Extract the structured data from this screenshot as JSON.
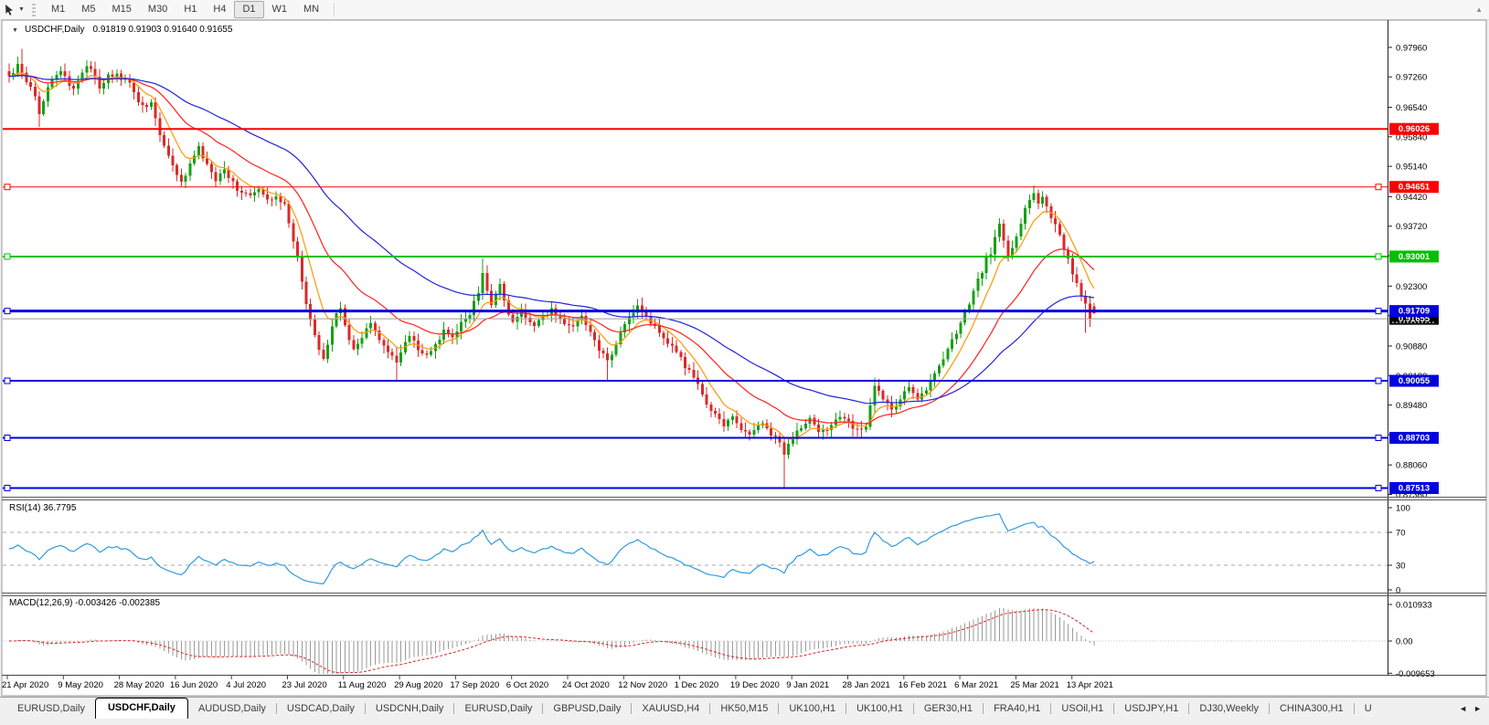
{
  "toolbar": {
    "timeframes": [
      "M1",
      "M5",
      "M15",
      "M30",
      "H1",
      "H4",
      "D1",
      "W1",
      "MN"
    ],
    "active": "D1"
  },
  "chart": {
    "title": "USDCHF,Daily",
    "ohlc_text": "0.91819 0.91903 0.91640 0.91655"
  },
  "indicators": {
    "rsi_label": "RSI(14) 36.7795",
    "macd_label": "MACD(12,26,9) -0.003426 -0.002385"
  },
  "chart_data": {
    "type": "candlestick",
    "symbol": "USDCHF",
    "timeframe": "Daily",
    "title": "USDCHF,Daily  0.91819 0.91903 0.91640 0.91655",
    "bars": 253,
    "last_candle": {
      "open": 0.91819,
      "high": 0.91903,
      "low": 0.9164,
      "close": 0.91655
    },
    "y_range": [
      0.8735,
      0.9852
    ],
    "y_ticks": [
      "0.97960",
      "0.97260",
      "0.96540",
      "0.95840",
      "0.95140",
      "0.94420",
      "0.93720",
      "0.93020",
      "0.92300",
      "0.91600",
      "0.90880",
      "0.90180",
      "0.89480",
      "0.88780",
      "0.88060",
      "0.87360"
    ],
    "x_labels": [
      "21 Apr 2020",
      "9 May 2020",
      "28 May 2020",
      "16 Jun 2020",
      "4 Jul 2020",
      "23 Jul 2020",
      "11 Aug 2020",
      "29 Aug 2020",
      "17 Sep 2020",
      "6 Oct 2020",
      "24 Oct 2020",
      "12 Nov 2020",
      "1 Dec 2020",
      "19 Dec 2020",
      "9 Jan 2021",
      "28 Jan 2021",
      "16 Feb 2021",
      "6 Mar 2021",
      "25 Mar 2021",
      "13 Apr 2021"
    ],
    "h_lines": [
      {
        "price": "0.96026",
        "color": "#fe0000",
        "width": 2,
        "selected": false
      },
      {
        "price": "0.94651",
        "color": "#fe0000",
        "width": 1,
        "selected": true
      },
      {
        "price": "0.93001",
        "color": "#00c000",
        "width": 2,
        "selected": true
      },
      {
        "price": "0.91709",
        "color": "#0000e0",
        "width": 3,
        "selected": true
      },
      {
        "price": "0.90055",
        "color": "#0000e0",
        "width": 2,
        "selected": true
      },
      {
        "price": "0.88703",
        "color": "#0000e0",
        "width": 2,
        "selected": true
      },
      {
        "price": "0.87513",
        "color": "#0000e0",
        "width": 2,
        "selected": true
      }
    ],
    "current_price": {
      "value": "0.91655",
      "badge_color": "#000000"
    },
    "candle_colors": {
      "up": "#16a016",
      "down": "#da2a2a"
    },
    "moving_averages": [
      {
        "period": 8,
        "color": "#ff9900"
      },
      {
        "period": 24,
        "color": "#ff2020"
      },
      {
        "period": 55,
        "color": "#2222dd"
      }
    ],
    "price_keyframes": [
      [
        0,
        0.9725
      ],
      [
        2,
        0.9758
      ],
      [
        4,
        0.9722
      ],
      [
        6,
        0.9688
      ],
      [
        7,
        0.9645
      ],
      [
        9,
        0.9702
      ],
      [
        11,
        0.9733
      ],
      [
        13,
        0.9726
      ],
      [
        15,
        0.9701
      ],
      [
        17,
        0.9736
      ],
      [
        19,
        0.9748
      ],
      [
        21,
        0.9706
      ],
      [
        23,
        0.9736
      ],
      [
        25,
        0.9726
      ],
      [
        27,
        0.9721
      ],
      [
        29,
        0.9686
      ],
      [
        31,
        0.9655
      ],
      [
        33,
        0.9663
      ],
      [
        35,
        0.959
      ],
      [
        37,
        0.954
      ],
      [
        39,
        0.949
      ],
      [
        40,
        0.9475
      ],
      [
        42,
        0.952
      ],
      [
        44,
        0.9556
      ],
      [
        46,
        0.9515
      ],
      [
        48,
        0.9482
      ],
      [
        50,
        0.9506
      ],
      [
        52,
        0.9476
      ],
      [
        53,
        0.9462
      ],
      [
        56,
        0.9442
      ],
      [
        58,
        0.9456
      ],
      [
        60,
        0.9432
      ],
      [
        62,
        0.9446
      ],
      [
        64,
        0.942
      ],
      [
        65,
        0.9385
      ],
      [
        66,
        0.9332
      ],
      [
        67,
        0.9292
      ],
      [
        68,
        0.9242
      ],
      [
        69,
        0.9192
      ],
      [
        70,
        0.9152
      ],
      [
        71,
        0.9112
      ],
      [
        72,
        0.9086
      ],
      [
        73,
        0.9062
      ],
      [
        74,
        0.9092
      ],
      [
        75,
        0.9132
      ],
      [
        76,
        0.9162
      ],
      [
        77,
        0.9182
      ],
      [
        78,
        0.9142
      ],
      [
        79,
        0.9102
      ],
      [
        80,
        0.9076
      ],
      [
        82,
        0.9106
      ],
      [
        84,
        0.9142
      ],
      [
        86,
        0.9106
      ],
      [
        88,
        0.907
      ],
      [
        90,
        0.9052
      ],
      [
        92,
        0.9092
      ],
      [
        93,
        0.9112
      ],
      [
        95,
        0.9082
      ],
      [
        97,
        0.9062
      ],
      [
        99,
        0.9092
      ],
      [
        101,
        0.9122
      ],
      [
        103,
        0.9106
      ],
      [
        105,
        0.9142
      ],
      [
        107,
        0.9166
      ],
      [
        109,
        0.9212
      ],
      [
        110,
        0.9262
      ],
      [
        111,
        0.9222
      ],
      [
        112,
        0.9182
      ],
      [
        113,
        0.9212
      ],
      [
        114,
        0.9236
      ],
      [
        115,
        0.9192
      ],
      [
        116,
        0.9162
      ],
      [
        117,
        0.9142
      ],
      [
        118,
        0.9156
      ],
      [
        119,
        0.9172
      ],
      [
        120,
        0.9156
      ],
      [
        122,
        0.9136
      ],
      [
        124,
        0.9156
      ],
      [
        126,
        0.9176
      ],
      [
        128,
        0.9152
      ],
      [
        130,
        0.9132
      ],
      [
        132,
        0.9146
      ],
      [
        133,
        0.9156
      ],
      [
        135,
        0.9122
      ],
      [
        137,
        0.9082
      ],
      [
        139,
        0.9052
      ],
      [
        141,
        0.9092
      ],
      [
        143,
        0.9142
      ],
      [
        145,
        0.9172
      ],
      [
        146,
        0.919
      ],
      [
        147,
        0.9166
      ],
      [
        149,
        0.9146
      ],
      [
        151,
        0.9122
      ],
      [
        153,
        0.9096
      ],
      [
        155,
        0.9072
      ],
      [
        157,
        0.9042
      ],
      [
        159,
        0.9012
      ],
      [
        160,
        0.8992
      ],
      [
        162,
        0.8952
      ],
      [
        164,
        0.8922
      ],
      [
        166,
        0.8902
      ],
      [
        168,
        0.8916
      ],
      [
        170,
        0.8892
      ],
      [
        172,
        0.8876
      ],
      [
        173,
        0.8892
      ],
      [
        175,
        0.8906
      ],
      [
        177,
        0.8882
      ],
      [
        179,
        0.8856
      ],
      [
        180,
        0.8832
      ],
      [
        182,
        0.8872
      ],
      [
        184,
        0.8896
      ],
      [
        186,
        0.8912
      ],
      [
        187,
        0.8896
      ],
      [
        189,
        0.8882
      ],
      [
        191,
        0.8902
      ],
      [
        193,
        0.8922
      ],
      [
        195,
        0.8906
      ],
      [
        197,
        0.8886
      ],
      [
        199,
        0.8902
      ],
      [
        200,
        0.8952
      ],
      [
        201,
        0.8992
      ],
      [
        203,
        0.8962
      ],
      [
        205,
        0.8936
      ],
      [
        207,
        0.8962
      ],
      [
        209,
        0.8992
      ],
      [
        211,
        0.8966
      ],
      [
        213,
        0.8986
      ],
      [
        215,
        0.9022
      ],
      [
        217,
        0.9062
      ],
      [
        219,
        0.9102
      ],
      [
        221,
        0.9142
      ],
      [
        223,
        0.9192
      ],
      [
        225,
        0.9242
      ],
      [
        227,
        0.9292
      ],
      [
        228,
        0.9312
      ],
      [
        229,
        0.9346
      ],
      [
        230,
        0.9372
      ],
      [
        231,
        0.9342
      ],
      [
        232,
        0.9302
      ],
      [
        233,
        0.9322
      ],
      [
        234,
        0.9352
      ],
      [
        235,
        0.9382
      ],
      [
        236,
        0.9412
      ],
      [
        237,
        0.9436
      ],
      [
        238,
        0.9452
      ],
      [
        239,
        0.9432
      ],
      [
        240,
        0.9442
      ],
      [
        241,
        0.9416
      ],
      [
        242,
        0.9392
      ],
      [
        243,
        0.9372
      ],
      [
        244,
        0.9346
      ],
      [
        245,
        0.9322
      ],
      [
        246,
        0.9292
      ],
      [
        247,
        0.9262
      ],
      [
        248,
        0.9232
      ],
      [
        249,
        0.9206
      ],
      [
        250,
        0.9182
      ],
      [
        251,
        0.9152
      ],
      [
        252,
        0.9166
      ]
    ],
    "spikes": [
      {
        "bar": 3,
        "high": 0.9792
      },
      {
        "bar": 7,
        "low": 0.9607
      },
      {
        "bar": 90,
        "low": 0.9002
      },
      {
        "bar": 110,
        "high": 0.9296
      },
      {
        "bar": 139,
        "low": 0.9004
      },
      {
        "bar": 180,
        "low": 0.8753
      },
      {
        "bar": 238,
        "high": 0.9464
      },
      {
        "bar": 250,
        "low": 0.9119
      }
    ],
    "rsi": {
      "period": 14,
      "value": 36.7795,
      "color": "#2e9be0",
      "levels": [
        70,
        30
      ],
      "scale_labels": [
        "100",
        "70",
        "30",
        "0"
      ],
      "scale_values": [
        100,
        70,
        30,
        0
      ]
    },
    "macd": {
      "fast": 12,
      "slow": 26,
      "signal": 9,
      "value": -0.003426,
      "signal_value": -0.002385,
      "hist_color": "#9a9a9a",
      "signal_color": "#e02020",
      "scale_labels": [
        "0.010933",
        "0.00",
        "-0.009653"
      ],
      "y_max": 0.010933,
      "y_min": -0.009653
    }
  },
  "tabs": {
    "items": [
      "EURUSD,Daily",
      "USDCHF,Daily",
      "AUDUSD,Daily",
      "USDCAD,Daily",
      "USDCNH,Daily",
      "EURUSD,Daily",
      "GBPUSD,Daily",
      "XAUUSD,H4",
      "HK50,M15",
      "UK100,H1",
      "UK100,H1",
      "GER30,H1",
      "FRA40,H1",
      "USOil,H1",
      "USDJPY,H1",
      "DJ30,Weekly",
      "CHINA300,H1",
      "U"
    ],
    "active_index": 1
  }
}
